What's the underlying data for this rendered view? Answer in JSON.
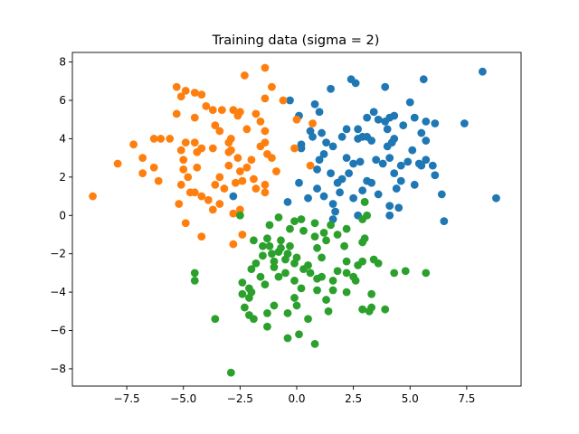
{
  "chart_data": {
    "type": "scatter",
    "title": "Training data (sigma = 2)",
    "xlabel": "",
    "ylabel": "",
    "xlim": [
      -9.9,
      9.9
    ],
    "ylim": [
      -8.9,
      8.5
    ],
    "xticks": [
      -7.5,
      -5.0,
      -2.5,
      0.0,
      2.5,
      5.0,
      7.5
    ],
    "xtick_labels": [
      "−7.5",
      "−5.0",
      "−2.5",
      "0.0",
      "2.5",
      "5.0",
      "7.5"
    ],
    "yticks": [
      -8,
      -6,
      -4,
      -2,
      0,
      2,
      4,
      6,
      8
    ],
    "ytick_labels": [
      "−8",
      "−6",
      "−4",
      "−2",
      "0",
      "2",
      "4",
      "6",
      "8"
    ],
    "grid": false,
    "series": [
      {
        "color": "#1f77b4",
        "points": [
          [
            8.2,
            7.5
          ],
          [
            5.6,
            7.1
          ],
          [
            2.4,
            7.1
          ],
          [
            2.6,
            6.9
          ],
          [
            3.9,
            6.7
          ],
          [
            1.5,
            6.6
          ],
          [
            -0.3,
            6.0
          ],
          [
            5.0,
            5.9
          ],
          [
            0.8,
            5.8
          ],
          [
            1.0,
            5.4
          ],
          [
            3.4,
            5.4
          ],
          [
            4.3,
            5.2
          ],
          [
            0.1,
            5.2
          ],
          [
            3.1,
            5.1
          ],
          [
            4.1,
            5.1
          ],
          [
            5.2,
            5.1
          ],
          [
            3.6,
            5.0
          ],
          [
            5.7,
            4.9
          ],
          [
            6.1,
            4.8
          ],
          [
            7.4,
            4.8
          ],
          [
            3.9,
            4.9
          ],
          [
            4.7,
            4.7
          ],
          [
            2.2,
            4.5
          ],
          [
            2.7,
            4.5
          ],
          [
            0.6,
            4.4
          ],
          [
            1.1,
            4.3
          ],
          [
            4.0,
            4.5
          ],
          [
            5.5,
            4.3
          ],
          [
            0.7,
            4.1
          ],
          [
            2.0,
            4.1
          ],
          [
            2.9,
            4.1
          ],
          [
            3.1,
            4.1
          ],
          [
            3.3,
            3.9
          ],
          [
            2.7,
            4.0
          ],
          [
            4.3,
            4.0
          ],
          [
            5.7,
            3.9
          ],
          [
            0.2,
            3.7
          ],
          [
            1.3,
            3.8
          ],
          [
            1.6,
            3.6
          ],
          [
            4.0,
            3.6
          ],
          [
            4.2,
            3.8
          ],
          [
            5.1,
            3.4
          ],
          [
            0.2,
            3.5
          ],
          [
            1.2,
            3.2
          ],
          [
            2.2,
            3.0
          ],
          [
            2.8,
            2.8
          ],
          [
            3.5,
            2.9
          ],
          [
            4.6,
            2.6
          ],
          [
            5.4,
            2.7
          ],
          [
            6.0,
            2.6
          ],
          [
            5.7,
            2.9
          ],
          [
            1.0,
            2.9
          ],
          [
            2.5,
            2.7
          ],
          [
            3.8,
            2.7
          ],
          [
            4.1,
            3.0
          ],
          [
            4.9,
            2.8
          ],
          [
            5.5,
            2.6
          ],
          [
            6.1,
            2.1
          ],
          [
            0.9,
            2.4
          ],
          [
            1.5,
            2.2
          ],
          [
            2.3,
            2.2
          ],
          [
            4.3,
            2.2
          ],
          [
            2.0,
            1.9
          ],
          [
            3.1,
            1.8
          ],
          [
            4.6,
            1.8
          ],
          [
            0.1,
            1.7
          ],
          [
            1.8,
            1.7
          ],
          [
            3.3,
            1.7
          ],
          [
            5.2,
            1.6
          ],
          [
            4.4,
            1.4
          ],
          [
            0.9,
            1.4
          ],
          [
            2.9,
            1.3
          ],
          [
            1.9,
            1.2
          ],
          [
            6.4,
            1.1
          ],
          [
            3.6,
            1.1
          ],
          [
            -2.8,
            1.0
          ],
          [
            1.2,
            1.0
          ],
          [
            0.5,
            0.9
          ],
          [
            2.5,
            0.9
          ],
          [
            8.8,
            0.9
          ],
          [
            -0.4,
            0.7
          ],
          [
            3.0,
            0.7
          ],
          [
            1.6,
            0.6
          ],
          [
            4.1,
            0.5
          ],
          [
            4.5,
            0.4
          ],
          [
            1.7,
            0.2
          ],
          [
            4.1,
            0.0
          ],
          [
            2.7,
            0.0
          ],
          [
            6.5,
            -0.3
          ],
          [
            1.6,
            -0.2
          ]
        ]
      },
      {
        "color": "#ff7f0e",
        "points": [
          [
            -1.4,
            7.7
          ],
          [
            -2.3,
            7.3
          ],
          [
            -1.1,
            6.7
          ],
          [
            -5.3,
            6.7
          ],
          [
            -4.9,
            6.5
          ],
          [
            -4.5,
            6.4
          ],
          [
            -4.2,
            6.3
          ],
          [
            -5.1,
            6.2
          ],
          [
            -1.4,
            6.1
          ],
          [
            -0.6,
            6.0
          ],
          [
            -4.0,
            5.7
          ],
          [
            -3.3,
            5.5
          ],
          [
            -2.8,
            5.5
          ],
          [
            -2.5,
            5.4
          ],
          [
            -3.7,
            5.5
          ],
          [
            -2.6,
            5.2
          ],
          [
            -5.3,
            5.3
          ],
          [
            -1.8,
            5.3
          ],
          [
            -4.5,
            5.1
          ],
          [
            0.0,
            5.0
          ],
          [
            -1.6,
            4.9
          ],
          [
            -3.6,
            4.7
          ],
          [
            -2.2,
            4.5
          ],
          [
            -3.4,
            4.4
          ],
          [
            0.7,
            4.8
          ],
          [
            -1.4,
            4.4
          ],
          [
            -6.0,
            4.0
          ],
          [
            -6.3,
            4.0
          ],
          [
            -7.2,
            3.7
          ],
          [
            -2.9,
            4.0
          ],
          [
            -5.6,
            4.0
          ],
          [
            -4.9,
            3.8
          ],
          [
            -4.5,
            3.8
          ],
          [
            -3.7,
            3.5
          ],
          [
            -3.0,
            3.8
          ],
          [
            -1.4,
            3.8
          ],
          [
            -4.2,
            3.5
          ],
          [
            -5.1,
            3.4
          ],
          [
            -6.8,
            3.0
          ],
          [
            -2.9,
            3.4
          ],
          [
            -1.6,
            3.6
          ],
          [
            -0.1,
            3.5
          ],
          [
            -1.3,
            3.2
          ],
          [
            -4.4,
            3.3
          ],
          [
            -3.0,
            3.3
          ],
          [
            -1.1,
            3.0
          ],
          [
            -2.6,
            3.0
          ],
          [
            -2.0,
            2.9
          ],
          [
            -7.9,
            2.7
          ],
          [
            -5.0,
            2.9
          ],
          [
            -3.0,
            2.6
          ],
          [
            -2.2,
            2.5
          ],
          [
            -2.5,
            2.3
          ],
          [
            0.6,
            2.6
          ],
          [
            -6.3,
            2.5
          ],
          [
            -4.4,
            2.5
          ],
          [
            -5.0,
            2.4
          ],
          [
            -6.8,
            2.2
          ],
          [
            -0.9,
            2.3
          ],
          [
            -3.4,
            2.0
          ],
          [
            -4.8,
            2.0
          ],
          [
            -6.1,
            1.8
          ],
          [
            -1.9,
            1.9
          ],
          [
            -2.4,
            1.8
          ],
          [
            -5.1,
            1.6
          ],
          [
            -3.6,
            1.6
          ],
          [
            -2.7,
            1.7
          ],
          [
            -1.4,
            1.6
          ],
          [
            -4.5,
            1.2
          ],
          [
            -1.8,
            1.4
          ],
          [
            -3.2,
            1.4
          ],
          [
            -4.7,
            1.2
          ],
          [
            -1.4,
            1.2
          ],
          [
            -9.0,
            1.0
          ],
          [
            -4.2,
            1.0
          ],
          [
            -3.9,
            0.8
          ],
          [
            -5.2,
            0.6
          ],
          [
            -2.5,
            0.3
          ],
          [
            -3.4,
            0.6
          ],
          [
            -3.7,
            0.3
          ],
          [
            -2.8,
            0.1
          ],
          [
            -4.9,
            -0.4
          ],
          [
            -2.4,
            -1.0
          ],
          [
            -4.2,
            -1.1
          ],
          [
            -2.8,
            -1.5
          ]
        ]
      },
      {
        "color": "#2ca02c",
        "points": [
          [
            -2.5,
            0.0
          ],
          [
            -0.8,
            -0.1
          ],
          [
            -1.2,
            -0.5
          ],
          [
            0.2,
            -0.2
          ],
          [
            -0.1,
            -0.3
          ],
          [
            0.8,
            -0.4
          ],
          [
            1.5,
            -0.5
          ],
          [
            2.2,
            -0.7
          ],
          [
            2.9,
            -0.2
          ],
          [
            3.1,
            0.0
          ],
          [
            3.0,
            0.7
          ],
          [
            -0.3,
            -0.7
          ],
          [
            0.3,
            -0.8
          ],
          [
            1.2,
            -0.9
          ],
          [
            1.8,
            -1.0
          ],
          [
            0.8,
            -1.1
          ],
          [
            -1.3,
            -1.2
          ],
          [
            -1.9,
            -1.3
          ],
          [
            -0.7,
            -1.3
          ],
          [
            1.3,
            -1.3
          ],
          [
            3.0,
            -1.2
          ],
          [
            2.9,
            -1.4
          ],
          [
            -1.5,
            -1.6
          ],
          [
            -1.2,
            -1.6
          ],
          [
            -0.7,
            -1.7
          ],
          [
            -0.3,
            -1.6
          ],
          [
            0.9,
            -1.7
          ],
          [
            2.1,
            -1.6
          ],
          [
            -0.8,
            -1.9
          ],
          [
            -1.1,
            -2.0
          ],
          [
            -0.4,
            -2.0
          ],
          [
            0.0,
            -2.2
          ],
          [
            -1.5,
            -2.1
          ],
          [
            -0.5,
            -2.3
          ],
          [
            -0.1,
            -2.5
          ],
          [
            1.1,
            -2.2
          ],
          [
            -1.0,
            -2.4
          ],
          [
            2.2,
            -2.4
          ],
          [
            3.4,
            -2.3
          ],
          [
            0.5,
            -2.6
          ],
          [
            -1.8,
            -2.5
          ],
          [
            2.7,
            -2.6
          ],
          [
            2.9,
            -2.4
          ],
          [
            3.6,
            -2.5
          ],
          [
            -2.0,
            -2.8
          ],
          [
            -1.0,
            -2.7
          ],
          [
            0.3,
            -2.8
          ],
          [
            1.8,
            -2.9
          ],
          [
            -0.5,
            -3.0
          ],
          [
            0.6,
            -3.0
          ],
          [
            -0.8,
            -3.2
          ],
          [
            1.1,
            -3.2
          ],
          [
            2.2,
            -3.0
          ],
          [
            2.5,
            -3.2
          ],
          [
            4.3,
            -3.0
          ],
          [
            4.8,
            -2.9
          ],
          [
            5.7,
            -3.0
          ],
          [
            -1.6,
            -3.2
          ],
          [
            -0.1,
            -3.4
          ],
          [
            0.9,
            -3.3
          ],
          [
            2.6,
            -3.4
          ],
          [
            1.6,
            -3.4
          ],
          [
            -2.4,
            -3.5
          ],
          [
            -4.5,
            -3.0
          ],
          [
            -4.5,
            -3.4
          ],
          [
            -2.1,
            -3.8
          ],
          [
            -1.4,
            -3.6
          ],
          [
            -2.4,
            -4.1
          ],
          [
            -2.0,
            -4.0
          ],
          [
            0.2,
            -3.8
          ],
          [
            0.9,
            -3.9
          ],
          [
            1.6,
            -3.9
          ],
          [
            2.2,
            -4.0
          ],
          [
            3.3,
            -4.1
          ],
          [
            -0.1,
            -4.3
          ],
          [
            1.3,
            -4.4
          ],
          [
            -2.1,
            -4.3
          ],
          [
            -2.3,
            -4.8
          ],
          [
            -1.0,
            -4.7
          ],
          [
            0.0,
            -4.7
          ],
          [
            2.9,
            -4.9
          ],
          [
            3.2,
            -5.0
          ],
          [
            3.9,
            -4.9
          ],
          [
            -3.6,
            -5.4
          ],
          [
            -2.1,
            -5.2
          ],
          [
            -1.3,
            -5.1
          ],
          [
            -0.4,
            -5.1
          ],
          [
            1.4,
            -5.0
          ],
          [
            3.3,
            -4.8
          ],
          [
            -1.9,
            -5.4
          ],
          [
            0.5,
            -5.4
          ],
          [
            -1.3,
            -5.8
          ],
          [
            -0.4,
            -6.4
          ],
          [
            0.1,
            -6.2
          ],
          [
            0.8,
            -6.7
          ],
          [
            -2.9,
            -8.2
          ]
        ]
      }
    ]
  }
}
